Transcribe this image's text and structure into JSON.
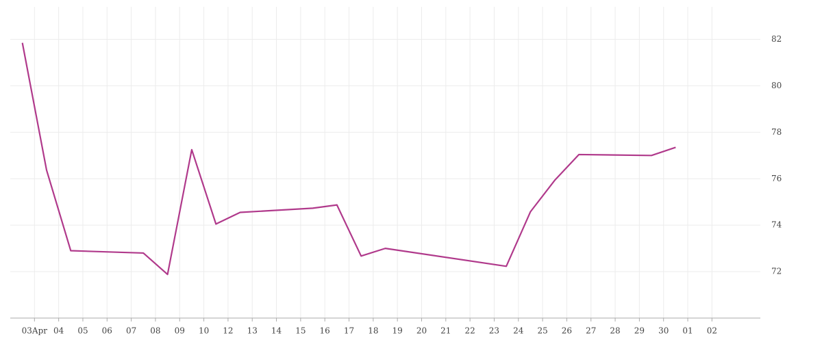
{
  "chart_data": {
    "type": "line",
    "x": [
      -0.5,
      0.5,
      1.5,
      4.5,
      5.5,
      6.5,
      7.5,
      8.5,
      11.5,
      12.5,
      13.5,
      14.5,
      19.5,
      20.5,
      21.5,
      22.5,
      25.5,
      26.5
    ],
    "series": [
      {
        "color": "#b0398b",
        "values": [
          81.85,
          76.37,
          72.9,
          72.8,
          71.88,
          77.25,
          74.05,
          74.55,
          74.73,
          74.87,
          72.67,
          73.0,
          72.23,
          74.58,
          75.93,
          77.04,
          77.0,
          77.35
        ]
      }
    ],
    "xlim": [
      -1,
      30
    ],
    "xticks": [
      {
        "value": 0,
        "label": "03Apr"
      },
      {
        "value": 1,
        "label": "04"
      },
      {
        "value": 2,
        "label": "05"
      },
      {
        "value": 3,
        "label": "06"
      },
      {
        "value": 4,
        "label": "07"
      },
      {
        "value": 5,
        "label": "08"
      },
      {
        "value": 6,
        "label": "09"
      },
      {
        "value": 7,
        "label": "10"
      },
      {
        "value": 8,
        "label": "12"
      },
      {
        "value": 9,
        "label": "13"
      },
      {
        "value": 10,
        "label": "14"
      },
      {
        "value": 11,
        "label": "15"
      },
      {
        "value": 12,
        "label": "16"
      },
      {
        "value": 13,
        "label": "17"
      },
      {
        "value": 14,
        "label": "18"
      },
      {
        "value": 15,
        "label": "19"
      },
      {
        "value": 16,
        "label": "20"
      },
      {
        "value": 17,
        "label": "21"
      },
      {
        "value": 18,
        "label": "22"
      },
      {
        "value": 19,
        "label": "23"
      },
      {
        "value": 20,
        "label": "24"
      },
      {
        "value": 21,
        "label": "25"
      },
      {
        "value": 22,
        "label": "26"
      },
      {
        "value": 23,
        "label": "27"
      },
      {
        "value": 24,
        "label": "28"
      },
      {
        "value": 25,
        "label": "29"
      },
      {
        "value": 26,
        "label": "30"
      },
      {
        "value": 27,
        "label": "01"
      },
      {
        "value": 28,
        "label": "02"
      }
    ],
    "ylim": [
      70,
      83.4
    ],
    "yticks": [
      72,
      74,
      76,
      78,
      80,
      82
    ],
    "grid": true
  }
}
